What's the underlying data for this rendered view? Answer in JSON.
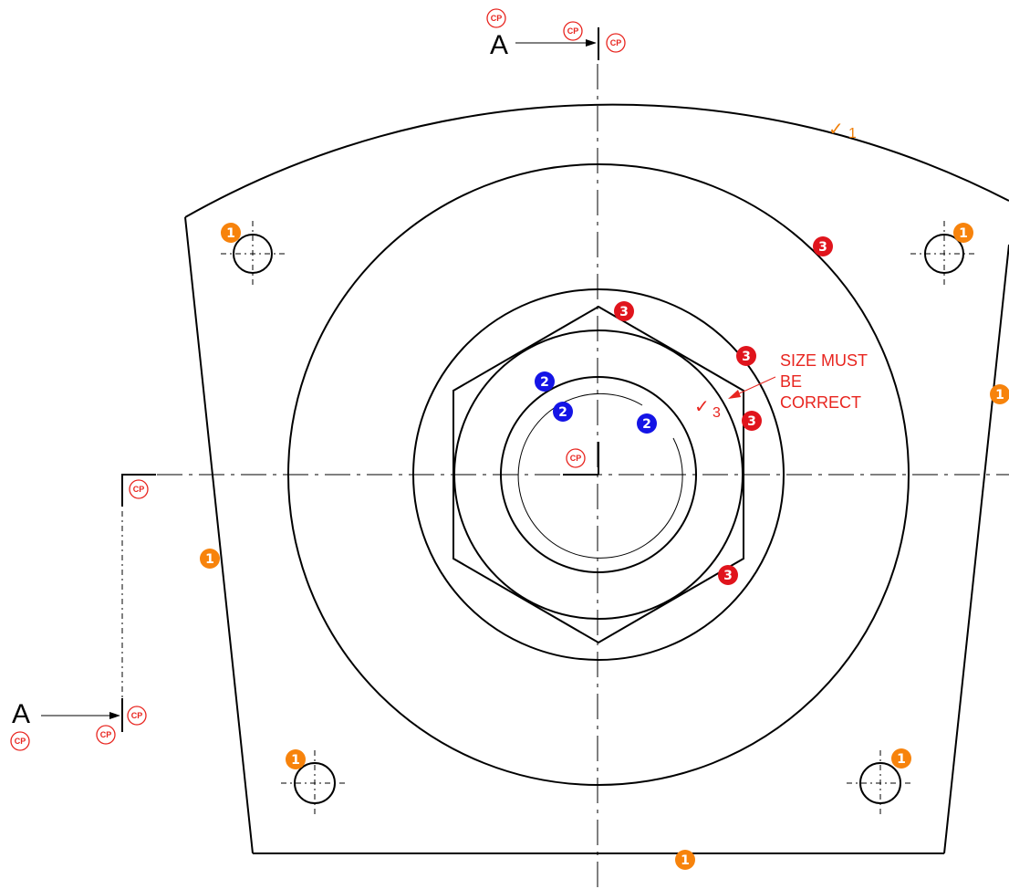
{
  "section": {
    "letter": "A"
  },
  "check_marks": {
    "top": {
      "number": "1",
      "color": "#f07f0a"
    },
    "size": {
      "number": "3",
      "color": "#e8251f"
    }
  },
  "note": {
    "lines": [
      "SIZE MUST",
      "BE",
      "CORRECT"
    ],
    "color": "#e8251f"
  },
  "cp_label": "CP",
  "badges": {
    "one": {
      "text": "1",
      "color": "#f7830c"
    },
    "two": {
      "text": "2",
      "color": "#1414e6"
    },
    "three": {
      "text": "3",
      "color": "#e0141c"
    }
  },
  "colors": {
    "line": "#000000",
    "background": "#ffffff",
    "cp": "#e8251f"
  }
}
